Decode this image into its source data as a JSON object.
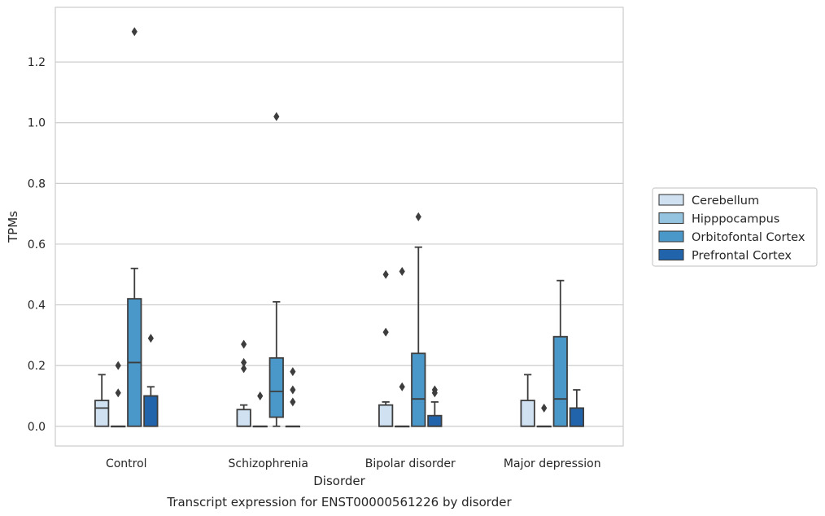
{
  "chart_data": {
    "type": "boxplot",
    "title": "",
    "caption": "Transcript expression for ENST00000561226 by disorder",
    "xlabel": "Disorder",
    "ylabel": "TPMs",
    "ylim": [
      -0.065,
      1.38
    ],
    "yticks": [
      0.0,
      0.2,
      0.4,
      0.6,
      0.8,
      1.0,
      1.2
    ],
    "ytick_labels": [
      "0.0",
      "0.2",
      "0.4",
      "0.6",
      "0.8",
      "1.0",
      "1.2"
    ],
    "grid": "horizontal",
    "legend_placement": "right",
    "categories": [
      "Control",
      "Schizophrenia",
      "Bipolar disorder",
      "Major depression"
    ],
    "series": [
      {
        "name": "Cerebellum",
        "color": "#d0e1f2",
        "boxes": [
          {
            "q1": 0.0,
            "median": 0.06,
            "q3": 0.085,
            "whisker_low": 0.0,
            "whisker_high": 0.17,
            "outliers": []
          },
          {
            "q1": 0.0,
            "median": 0.0,
            "q3": 0.055,
            "whisker_low": 0.0,
            "whisker_high": 0.07,
            "outliers": [
              0.19,
              0.21,
              0.27
            ]
          },
          {
            "q1": 0.0,
            "median": 0.0,
            "q3": 0.07,
            "whisker_low": 0.0,
            "whisker_high": 0.08,
            "outliers": [
              0.31,
              0.5
            ]
          },
          {
            "q1": 0.0,
            "median": 0.0,
            "q3": 0.085,
            "whisker_low": 0.0,
            "whisker_high": 0.17,
            "outliers": []
          }
        ]
      },
      {
        "name": "Hipppocampus",
        "color": "#94c4df",
        "boxes": [
          {
            "q1": 0.0,
            "median": 0.0,
            "q3": 0.0,
            "whisker_low": 0.0,
            "whisker_high": 0.0,
            "outliers": [
              0.11,
              0.2
            ]
          },
          {
            "q1": 0.0,
            "median": 0.0,
            "q3": 0.0,
            "whisker_low": 0.0,
            "whisker_high": 0.0,
            "outliers": [
              0.1
            ]
          },
          {
            "q1": 0.0,
            "median": 0.0,
            "q3": 0.0,
            "whisker_low": 0.0,
            "whisker_high": 0.0,
            "outliers": [
              0.13,
              0.51
            ]
          },
          {
            "q1": 0.0,
            "median": 0.0,
            "q3": 0.0,
            "whisker_low": 0.0,
            "whisker_high": 0.0,
            "outliers": [
              0.06
            ]
          }
        ]
      },
      {
        "name": "Orbitofontal Cortex",
        "color": "#4a98c9",
        "boxes": [
          {
            "q1": 0.0,
            "median": 0.21,
            "q3": 0.42,
            "whisker_low": 0.0,
            "whisker_high": 0.52,
            "outliers": [
              1.3
            ]
          },
          {
            "q1": 0.03,
            "median": 0.115,
            "q3": 0.225,
            "whisker_low": 0.0,
            "whisker_high": 0.41,
            "outliers": [
              1.02
            ]
          },
          {
            "q1": 0.0,
            "median": 0.09,
            "q3": 0.24,
            "whisker_low": 0.0,
            "whisker_high": 0.59,
            "outliers": [
              0.69
            ]
          },
          {
            "q1": 0.0,
            "median": 0.09,
            "q3": 0.295,
            "whisker_low": 0.0,
            "whisker_high": 0.48,
            "outliers": []
          }
        ]
      },
      {
        "name": "Prefrontal Cortex",
        "color": "#2164ab",
        "boxes": [
          {
            "q1": 0.0,
            "median": 0.1,
            "q3": 0.1,
            "whisker_low": 0.0,
            "whisker_high": 0.13,
            "outliers": [
              0.29
            ]
          },
          {
            "q1": 0.0,
            "median": 0.0,
            "q3": 0.0,
            "whisker_low": 0.0,
            "whisker_high": 0.0,
            "outliers": [
              0.08,
              0.12,
              0.18
            ]
          },
          {
            "q1": 0.0,
            "median": 0.0,
            "q3": 0.035,
            "whisker_low": 0.0,
            "whisker_high": 0.08,
            "outliers": [
              0.11,
              0.12
            ]
          },
          {
            "q1": 0.0,
            "median": 0.0,
            "q3": 0.06,
            "whisker_low": 0.0,
            "whisker_high": 0.12,
            "outliers": []
          }
        ]
      }
    ]
  }
}
